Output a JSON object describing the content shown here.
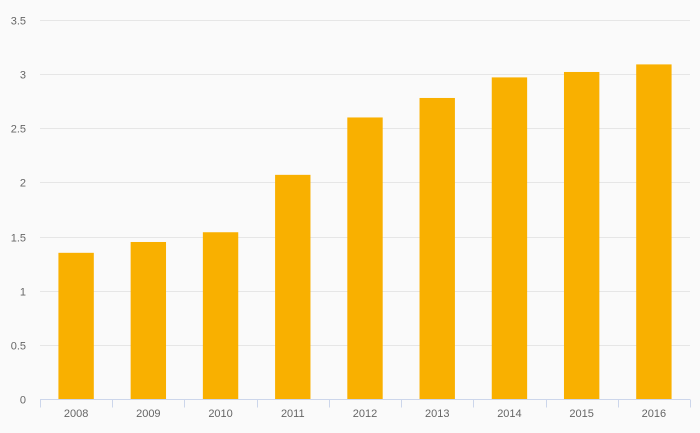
{
  "chart_data": {
    "type": "bar",
    "title": "",
    "xlabel": "",
    "ylabel": "",
    "categories": [
      "2008",
      "2009",
      "2010",
      "2011",
      "2012",
      "2013",
      "2014",
      "2015",
      "2016"
    ],
    "values": [
      1.35,
      1.45,
      1.54,
      2.07,
      2.6,
      2.78,
      2.97,
      3.02,
      3.09
    ],
    "ylim": [
      0,
      3.5
    ],
    "yticks": [
      "0",
      "0.5",
      "1",
      "1.5",
      "2",
      "2.5",
      "3",
      "3.5"
    ],
    "grid": true,
    "legend": "none",
    "colors": {
      "bar": "#f9b000",
      "grid": "#e6e6e6",
      "axis": "#ccd6eb",
      "label": "#666666",
      "background": "#fafafa"
    }
  }
}
